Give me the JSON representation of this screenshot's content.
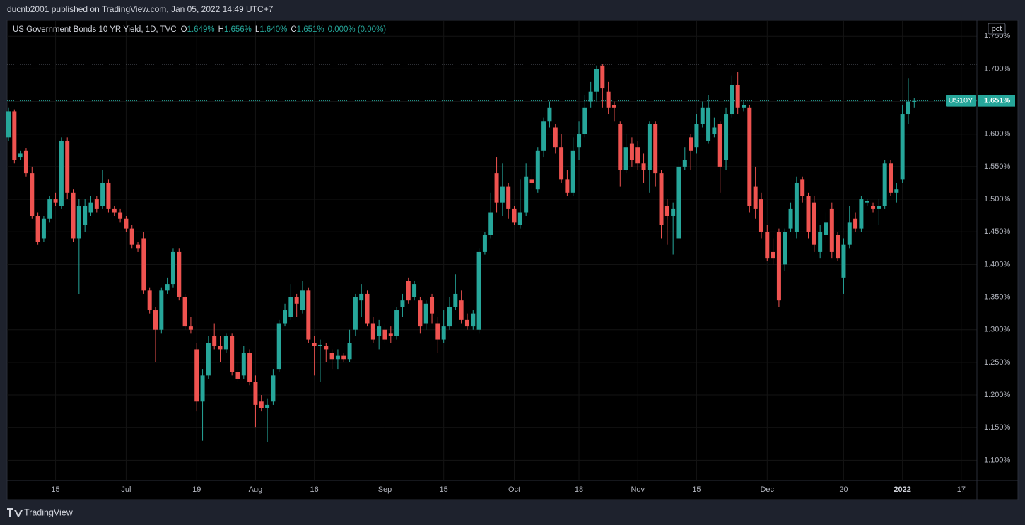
{
  "header": {
    "publisher": "ducnb2001 published on TradingView.com, Jan 05, 2022 14:49 UTC+7"
  },
  "footer": {
    "brand": "TradingView"
  },
  "chart_data": {
    "type": "candlestick",
    "title": "US Government Bonds 10 YR Yield, 1D, TVC",
    "legend": [
      {
        "key": "O",
        "text": "1.649%"
      },
      {
        "key": "H",
        "text": "1.656%"
      },
      {
        "key": "L",
        "text": "1.640%"
      },
      {
        "key": "C",
        "text": "1.651%"
      }
    ],
    "change": "0.000% (0.00%)",
    "scale_unit": "pct",
    "symbol": "US10Y",
    "last_price": {
      "value": 1.651,
      "label": "1.651%"
    },
    "up_color": "#26a69a",
    "down_color": "#ef5350",
    "grid": true,
    "ylim": [
      1.069,
      1.773
    ],
    "yticks": [
      {
        "value": 1.1,
        "label": "1.100%"
      },
      {
        "value": 1.15,
        "label": "1.150%"
      },
      {
        "value": 1.2,
        "label": "1.200%"
      },
      {
        "value": 1.25,
        "label": "1.250%"
      },
      {
        "value": 1.3,
        "label": "1.300%"
      },
      {
        "value": 1.35,
        "label": "1.350%"
      },
      {
        "value": 1.4,
        "label": "1.400%"
      },
      {
        "value": 1.45,
        "label": "1.450%"
      },
      {
        "value": 1.5,
        "label": "1.500%"
      },
      {
        "value": 1.55,
        "label": "1.550%"
      },
      {
        "value": 1.6,
        "label": "1.600%"
      },
      {
        "value": 1.65,
        "label": "1.650%"
      },
      {
        "value": 1.7,
        "label": "1.700%"
      },
      {
        "value": 1.75,
        "label": "1.750%"
      }
    ],
    "xticks": [
      {
        "value": 8,
        "label": "15"
      },
      {
        "value": 20,
        "label": "Jul"
      },
      {
        "value": 32,
        "label": "19"
      },
      {
        "value": 42,
        "label": "Aug"
      },
      {
        "value": 52,
        "label": "16"
      },
      {
        "value": 64,
        "label": "Sep"
      },
      {
        "value": 74,
        "label": "15"
      },
      {
        "value": 86,
        "label": "Oct"
      },
      {
        "value": 97,
        "label": "18"
      },
      {
        "value": 107,
        "label": "Nov"
      },
      {
        "value": 117,
        "label": "15"
      },
      {
        "value": 129,
        "label": "Dec"
      },
      {
        "value": 142,
        "label": "20"
      },
      {
        "value": 152,
        "label": "2022"
      },
      {
        "value": 162,
        "label": "17"
      }
    ],
    "open": [
      1.595,
      1.635,
      1.565,
      1.575,
      1.54,
      1.475,
      1.44,
      1.47,
      1.5,
      1.49,
      1.59,
      1.51,
      1.44,
      1.46,
      1.48,
      1.5,
      1.49,
      1.525,
      1.485,
      1.48,
      1.47,
      1.455,
      1.43,
      1.44,
      1.36,
      1.33,
      1.3,
      1.36,
      1.37,
      1.42,
      1.35,
      1.305,
      1.27,
      1.19,
      1.23,
      1.29,
      1.275,
      1.27,
      1.29,
      1.235,
      1.23,
      1.265,
      1.22,
      1.19,
      1.18,
      1.19,
      1.24,
      1.31,
      1.32,
      1.35,
      1.33,
      1.36,
      1.28,
      1.275,
      1.275,
      1.265,
      1.255,
      1.26,
      1.255,
      1.3,
      1.345,
      1.355,
      1.31,
      1.29,
      1.3,
      1.295,
      1.29,
      1.335,
      1.375,
      1.35,
      1.345,
      1.31,
      1.35,
      1.31,
      1.285,
      1.305,
      1.335,
      1.345,
      1.315,
      1.305,
      1.3,
      1.42,
      1.445,
      1.54,
      1.495,
      1.52,
      1.485,
      1.46,
      1.48,
      1.53,
      1.515,
      1.575,
      1.62,
      1.61,
      1.58,
      1.53,
      1.51,
      1.58,
      1.6,
      1.65,
      1.665,
      1.705,
      1.665,
      1.645,
      1.615,
      1.545,
      1.585,
      1.58,
      1.555,
      1.545,
      1.615,
      1.54,
      1.49,
      1.475,
      1.44,
      1.55,
      1.595,
      1.58,
      1.615,
      1.59,
      1.6,
      1.615,
      1.56,
      1.63,
      1.675,
      1.64,
      1.64,
      1.52,
      1.5,
      1.45,
      1.42,
      1.45,
      1.4,
      1.455,
      1.45,
      1.53,
      1.505,
      1.495,
      1.42,
      1.445,
      1.485,
      1.445,
      1.38,
      1.43,
      1.47,
      1.455,
      1.495,
      1.49,
      1.485,
      1.49,
      1.555,
      1.51,
      1.53,
      1.63,
      1.649
    ],
    "high": [
      1.64,
      1.638,
      1.575,
      1.578,
      1.55,
      1.48,
      1.475,
      1.505,
      1.51,
      1.595,
      1.595,
      1.515,
      1.5,
      1.5,
      1.505,
      1.505,
      1.545,
      1.53,
      1.49,
      1.485,
      1.475,
      1.46,
      1.435,
      1.45,
      1.365,
      1.335,
      1.365,
      1.38,
      1.425,
      1.425,
      1.355,
      1.32,
      1.28,
      1.24,
      1.29,
      1.31,
      1.29,
      1.295,
      1.295,
      1.25,
      1.275,
      1.27,
      1.23,
      1.2,
      1.195,
      1.24,
      1.315,
      1.34,
      1.37,
      1.355,
      1.375,
      1.365,
      1.29,
      1.285,
      1.28,
      1.27,
      1.27,
      1.265,
      1.3,
      1.355,
      1.37,
      1.36,
      1.32,
      1.315,
      1.31,
      1.305,
      1.335,
      1.355,
      1.38,
      1.375,
      1.35,
      1.345,
      1.355,
      1.32,
      1.33,
      1.35,
      1.385,
      1.36,
      1.325,
      1.33,
      1.425,
      1.45,
      1.51,
      1.565,
      1.555,
      1.525,
      1.49,
      1.53,
      1.555,
      1.545,
      1.58,
      1.625,
      1.65,
      1.615,
      1.6,
      1.545,
      1.595,
      1.62,
      1.66,
      1.68,
      1.705,
      1.707,
      1.68,
      1.65,
      1.62,
      1.6,
      1.595,
      1.59,
      1.57,
      1.62,
      1.62,
      1.545,
      1.5,
      1.495,
      1.56,
      1.58,
      1.6,
      1.63,
      1.65,
      1.66,
      1.625,
      1.62,
      1.64,
      1.69,
      1.695,
      1.65,
      1.645,
      1.55,
      1.51,
      1.46,
      1.44,
      1.455,
      1.455,
      1.495,
      1.535,
      1.535,
      1.51,
      1.505,
      1.46,
      1.48,
      1.495,
      1.45,
      1.44,
      1.49,
      1.48,
      1.505,
      1.5,
      1.495,
      1.5,
      1.56,
      1.56,
      1.525,
      1.645,
      1.685,
      1.656
    ],
    "low": [
      1.59,
      1.555,
      1.56,
      1.535,
      1.47,
      1.43,
      1.435,
      1.465,
      1.49,
      1.485,
      1.5,
      1.435,
      1.355,
      1.45,
      1.475,
      1.48,
      1.485,
      1.48,
      1.475,
      1.465,
      1.45,
      1.425,
      1.42,
      1.355,
      1.325,
      1.25,
      1.295,
      1.355,
      1.365,
      1.345,
      1.3,
      1.295,
      1.175,
      1.13,
      1.225,
      1.27,
      1.25,
      1.265,
      1.23,
      1.22,
      1.225,
      1.215,
      1.15,
      1.175,
      1.128,
      1.185,
      1.235,
      1.305,
      1.315,
      1.32,
      1.325,
      1.28,
      1.23,
      1.22,
      1.25,
      1.24,
      1.24,
      1.25,
      1.25,
      1.29,
      1.32,
      1.305,
      1.28,
      1.27,
      1.28,
      1.28,
      1.285,
      1.32,
      1.34,
      1.345,
      1.295,
      1.3,
      1.31,
      1.265,
      1.28,
      1.3,
      1.33,
      1.31,
      1.3,
      1.3,
      1.295,
      1.415,
      1.44,
      1.48,
      1.475,
      1.47,
      1.46,
      1.455,
      1.475,
      1.515,
      1.51,
      1.565,
      1.61,
      1.57,
      1.525,
      1.505,
      1.505,
      1.56,
      1.595,
      1.64,
      1.65,
      1.64,
      1.63,
      1.62,
      1.52,
      1.54,
      1.55,
      1.545,
      1.525,
      1.51,
      1.52,
      1.44,
      1.43,
      1.415,
      1.44,
      1.545,
      1.545,
      1.57,
      1.61,
      1.585,
      1.595,
      1.51,
      1.545,
      1.625,
      1.63,
      1.635,
      1.48,
      1.47,
      1.44,
      1.405,
      1.4,
      1.335,
      1.39,
      1.45,
      1.44,
      1.495,
      1.44,
      1.42,
      1.41,
      1.435,
      1.41,
      1.405,
      1.355,
      1.425,
      1.45,
      1.45,
      1.49,
      1.48,
      1.46,
      1.485,
      1.505,
      1.495,
      1.525,
      1.615,
      1.64
    ],
    "close": [
      1.635,
      1.56,
      1.57,
      1.54,
      1.475,
      1.435,
      1.47,
      1.5,
      1.495,
      1.59,
      1.51,
      1.44,
      1.49,
      1.49,
      1.495,
      1.485,
      1.525,
      1.485,
      1.48,
      1.47,
      1.455,
      1.43,
      1.425,
      1.36,
      1.33,
      1.3,
      1.36,
      1.37,
      1.42,
      1.35,
      1.305,
      1.3,
      1.19,
      1.23,
      1.28,
      1.275,
      1.27,
      1.29,
      1.235,
      1.225,
      1.265,
      1.22,
      1.185,
      1.18,
      1.185,
      1.23,
      1.31,
      1.33,
      1.35,
      1.34,
      1.36,
      1.285,
      1.275,
      1.277,
      1.27,
      1.255,
      1.26,
      1.255,
      1.28,
      1.35,
      1.355,
      1.31,
      1.285,
      1.305,
      1.285,
      1.29,
      1.33,
      1.345,
      1.345,
      1.37,
      1.305,
      1.34,
      1.325,
      1.285,
      1.305,
      1.335,
      1.355,
      1.315,
      1.305,
      1.325,
      1.42,
      1.445,
      1.48,
      1.495,
      1.52,
      1.485,
      1.465,
      1.48,
      1.535,
      1.525,
      1.575,
      1.62,
      1.64,
      1.58,
      1.53,
      1.51,
      1.575,
      1.6,
      1.64,
      1.665,
      1.7,
      1.67,
      1.64,
      1.64,
      1.545,
      1.58,
      1.56,
      1.555,
      1.545,
      1.615,
      1.54,
      1.46,
      1.475,
      1.485,
      1.55,
      1.56,
      1.575,
      1.615,
      1.64,
      1.64,
      1.61,
      1.55,
      1.63,
      1.675,
      1.64,
      1.645,
      1.49,
      1.485,
      1.45,
      1.41,
      1.41,
      1.345,
      1.45,
      1.485,
      1.525,
      1.505,
      1.45,
      1.43,
      1.45,
      1.465,
      1.42,
      1.41,
      1.43,
      1.465,
      1.455,
      1.5,
      1.497,
      1.485,
      1.49,
      1.555,
      1.51,
      1.515,
      1.63,
      1.65,
      1.651
    ]
  }
}
